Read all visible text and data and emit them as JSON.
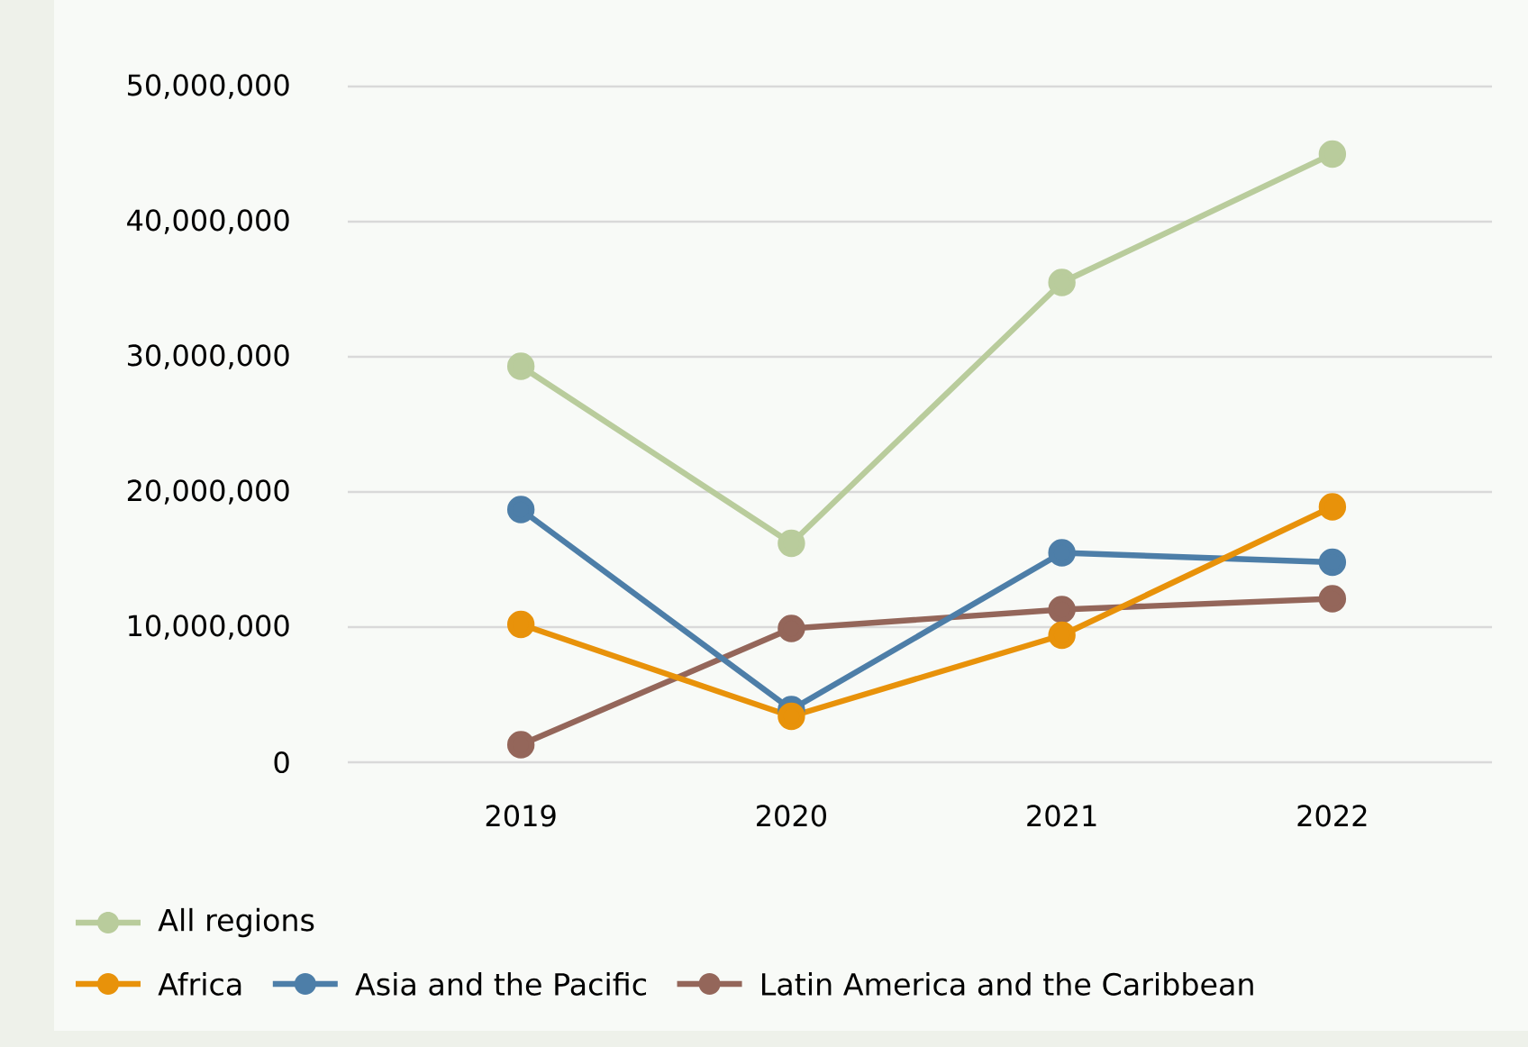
{
  "chart_data": {
    "type": "line",
    "categories": [
      "2019",
      "2020",
      "2021",
      "2022"
    ],
    "series": [
      {
        "name": "All regions",
        "color": "#b9cc9c",
        "values": [
          29300000,
          16200000,
          35500000,
          45000000
        ]
      },
      {
        "name": "Africa",
        "color": "#e8920a",
        "values": [
          10200000,
          3400000,
          9400000,
          18900000
        ]
      },
      {
        "name": "Asia and the Pacific",
        "color": "#4d7ea8",
        "values": [
          18700000,
          3900000,
          15500000,
          14800000
        ]
      },
      {
        "name": "Latin America and the Caribbean",
        "color": "#94665a",
        "values": [
          1300000,
          9900000,
          11300000,
          12100000
        ]
      }
    ],
    "ylim": [
      0,
      50000000
    ],
    "yticks": [
      0,
      {
        "value": 10000000,
        "label": "10,000,000"
      },
      {
        "value": 20000000,
        "label": "20,000,000"
      },
      {
        "value": 30000000,
        "label": "30,000,000"
      },
      {
        "value": 40000000,
        "label": "40,000,000"
      },
      {
        "value": 50000000,
        "label": "50,000,000"
      }
    ],
    "grid": "y",
    "legend": "bottom",
    "marker": "circle",
    "line_style": "solid"
  }
}
